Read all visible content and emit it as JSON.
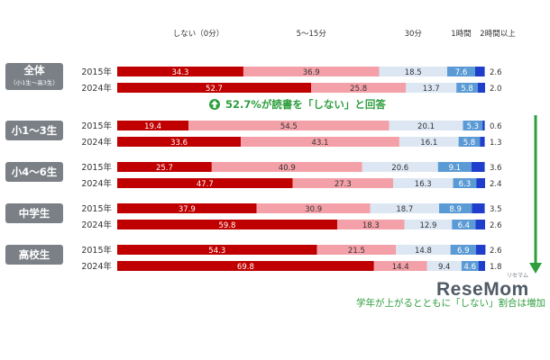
{
  "chart_data": {
    "type": "bar",
    "orientation": "horizontal",
    "stacked": "percent",
    "category_labels": [
      "しない（0分）",
      "5〜15分",
      "30分",
      "1時間",
      "2時間以上"
    ],
    "colors": [
      "#c00000",
      "#f4a0a8",
      "#dce7f3",
      "#5b9bd5",
      "#1f3ecb"
    ],
    "groups": [
      {
        "name": "全体",
        "sub": "（小1生〜高3生）",
        "rows": [
          {
            "year": "2015年",
            "values": [
              34.3,
              36.9,
              18.5,
              7.6,
              2.6
            ]
          },
          {
            "year": "2024年",
            "values": [
              52.7,
              25.8,
              13.7,
              5.8,
              2.0
            ]
          }
        ]
      },
      {
        "name": "小1〜3生",
        "sub": "",
        "rows": [
          {
            "year": "2015年",
            "values": [
              19.4,
              54.5,
              20.1,
              5.3,
              0.6
            ]
          },
          {
            "year": "2024年",
            "values": [
              33.6,
              43.1,
              16.1,
              5.8,
              1.3
            ]
          }
        ]
      },
      {
        "name": "小4〜6生",
        "sub": "",
        "rows": [
          {
            "year": "2015年",
            "values": [
              25.7,
              40.9,
              20.6,
              9.1,
              3.6
            ]
          },
          {
            "year": "2024年",
            "values": [
              47.7,
              27.3,
              16.3,
              6.3,
              2.4
            ]
          }
        ]
      },
      {
        "name": "中学生",
        "sub": "",
        "rows": [
          {
            "year": "2015年",
            "values": [
              37.9,
              30.9,
              18.7,
              8.9,
              3.5
            ]
          },
          {
            "year": "2024年",
            "values": [
              59.8,
              18.3,
              12.9,
              6.4,
              2.6
            ]
          }
        ]
      },
      {
        "name": "高校生",
        "sub": "",
        "rows": [
          {
            "year": "2015年",
            "values": [
              54.3,
              21.5,
              14.8,
              6.9,
              2.6
            ]
          },
          {
            "year": "2024年",
            "values": [
              69.8,
              14.4,
              9.4,
              4.6,
              1.8
            ]
          }
        ]
      }
    ],
    "annotations": {
      "callout": "52.7%が読書を「しない」と回答",
      "trend": "学年が上がるとともに「しない」割合は増加"
    },
    "accent_green": "#2e9e3e"
  },
  "watermark": {
    "text": "ReseMom",
    "sub": "リセマム"
  }
}
